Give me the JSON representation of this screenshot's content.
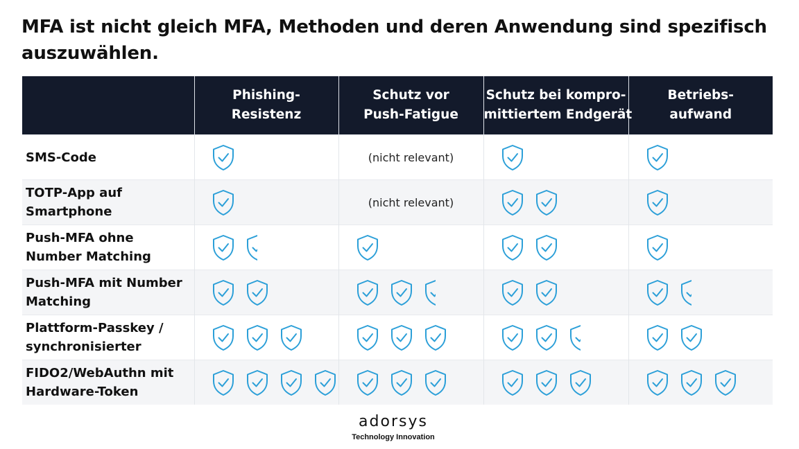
{
  "title": {
    "line1": "MFA ist nicht gleich MFA, Methoden und deren Anwendung sind spezifisch",
    "line2": "auszuwählen."
  },
  "icon_name": "shield-check-icon",
  "icon_color": "#2b9fd8",
  "header_color": "#131a2b",
  "columns": [
    {
      "line1": "",
      "line2": ""
    },
    {
      "line1": "Phishing-",
      "line2": "Resistenz"
    },
    {
      "line1": "Schutz vor",
      "line2": "Push-Fatigue"
    },
    {
      "line1": "Schutz bei kompro-",
      "line2": "mittiertem Endgerät"
    },
    {
      "line1": "Betriebs-",
      "line2": "aufwand"
    }
  ],
  "rows": [
    {
      "label": [
        "SMS-Code"
      ],
      "cells": [
        {
          "rating": 1
        },
        {
          "note": "(nicht relevant)"
        },
        {
          "rating": 1
        },
        {
          "rating": 1
        }
      ]
    },
    {
      "label": [
        "TOTP-App auf",
        "Smartphone"
      ],
      "cells": [
        {
          "rating": 1
        },
        {
          "note": "(nicht relevant)"
        },
        {
          "rating": 2
        },
        {
          "rating": 1
        }
      ]
    },
    {
      "label": [
        "Push-MFA ohne",
        "Number Matching"
      ],
      "cells": [
        {
          "rating": 1.5
        },
        {
          "rating": 1
        },
        {
          "rating": 2
        },
        {
          "rating": 1
        }
      ]
    },
    {
      "label": [
        "Push-MFA mit Number",
        "Matching"
      ],
      "cells": [
        {
          "rating": 2
        },
        {
          "rating": 2.5
        },
        {
          "rating": 2
        },
        {
          "rating": 1.5
        }
      ]
    },
    {
      "label": [
        "Plattform-Passkey /",
        "synchronisierter"
      ],
      "cells": [
        {
          "rating": 3
        },
        {
          "rating": 3
        },
        {
          "rating": 2.5
        },
        {
          "rating": 2
        }
      ]
    },
    {
      "label": [
        "FIDO2/WebAuthn mit",
        "Hardware-Token"
      ],
      "cells": [
        {
          "rating": 4
        },
        {
          "rating": 3
        },
        {
          "rating": 3
        },
        {
          "rating": 3
        }
      ]
    }
  ],
  "logo": {
    "name": "adorsys",
    "tagline": "Technology Innovation"
  }
}
